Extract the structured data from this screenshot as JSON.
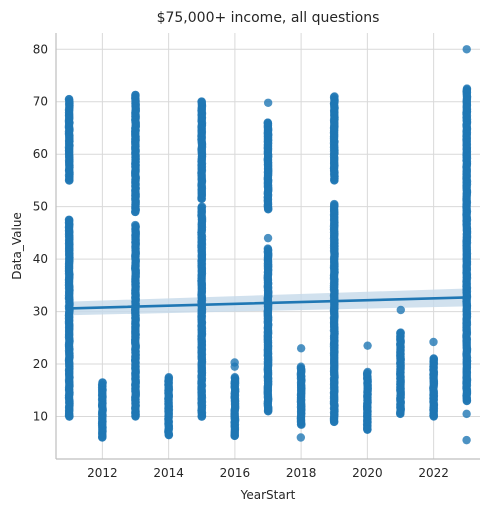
{
  "chart_data": {
    "type": "scatter",
    "title": "$75,000+ income, all questions",
    "xlabel": "YearStart",
    "ylabel": "Data_Value",
    "xlim": [
      2010.6,
      2023.4
    ],
    "ylim": [
      1.9,
      83.1
    ],
    "x_ticks": [
      2012,
      2014,
      2016,
      2018,
      2020,
      2022
    ],
    "y_ticks": [
      10,
      20,
      30,
      40,
      50,
      60,
      70,
      80
    ],
    "grid": true,
    "legend": "none",
    "point_color": "#1f77b4",
    "band_color": "#c6d9ea",
    "columns": [
      {
        "x": 2011,
        "ranges": [
          [
            10,
            47.5
          ],
          [
            55,
            70.5
          ]
        ],
        "extra": []
      },
      {
        "x": 2012,
        "ranges": [
          [
            6,
            16.5
          ]
        ],
        "extra": []
      },
      {
        "x": 2013,
        "ranges": [
          [
            10,
            46.5
          ],
          [
            49,
            71.3
          ]
        ],
        "extra": []
      },
      {
        "x": 2014,
        "ranges": [
          [
            6.5,
            17.5
          ]
        ],
        "extra": []
      },
      {
        "x": 2015,
        "ranges": [
          [
            10,
            50
          ],
          [
            51.5,
            70
          ]
        ],
        "extra": []
      },
      {
        "x": 2016,
        "ranges": [
          [
            6.3,
            17.5
          ]
        ],
        "extra": [
          19.5,
          20.3
        ]
      },
      {
        "x": 2017,
        "ranges": [
          [
            11,
            42
          ],
          [
            49.5,
            66
          ]
        ],
        "extra": [
          44,
          69.8
        ]
      },
      {
        "x": 2018,
        "ranges": [
          [
            8.5,
            19.5
          ]
        ],
        "extra": [
          6,
          23
        ]
      },
      {
        "x": 2019,
        "ranges": [
          [
            9,
            50.5
          ],
          [
            55,
            71
          ]
        ],
        "extra": []
      },
      {
        "x": 2020,
        "ranges": [
          [
            7.5,
            18.5
          ]
        ],
        "extra": [
          23.5
        ]
      },
      {
        "x": 2021,
        "ranges": [
          [
            10.5,
            26
          ]
        ],
        "extra": [
          30.3
        ]
      },
      {
        "x": 2022,
        "ranges": [
          [
            10,
            21
          ]
        ],
        "extra": [
          24.2
        ]
      },
      {
        "x": 2023,
        "ranges": [
          [
            13,
            72.5
          ]
        ],
        "extra": [
          5.5,
          10.5,
          80
        ]
      }
    ],
    "regression": {
      "x": [
        2011,
        2023
      ],
      "y": [
        30.6,
        32.7
      ],
      "ci": [
        1.3,
        1.7
      ],
      "color": "#1f77b4"
    }
  }
}
